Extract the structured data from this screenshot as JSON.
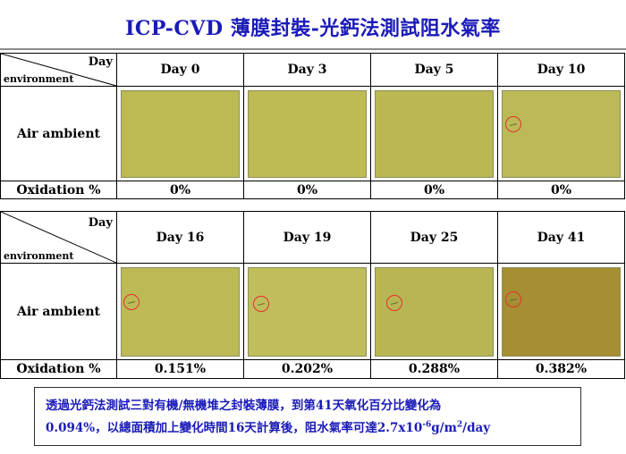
{
  "title": "ICP-CVD 薄膜封裝-光鈣法測試阻水氣率",
  "corner": {
    "day": "Day",
    "environment": "environment"
  },
  "row_labels": {
    "air": "Air ambient",
    "oxidation": "Oxidation %"
  },
  "table1": {
    "days": [
      "Day 0",
      "Day 3",
      "Day 5",
      "Day 10"
    ],
    "oxidation": [
      "0%",
      "0%",
      "0%",
      "0%"
    ]
  },
  "table2": {
    "days": [
      "Day 16",
      "Day 19",
      "Day 25",
      "Day 41"
    ],
    "oxidation": [
      "0.151%",
      "0.202%",
      "0.288%",
      "0.382%"
    ]
  },
  "colors": {
    "title": "#1a1ab8",
    "sample_fresh": "#bcba53",
    "sample_day41": "#a58f32",
    "marker": "#e53030"
  },
  "note": {
    "line1": "透過光鈣法測試三對有機/無機堆之封裝薄膜，到第41天氧化百分比變化為",
    "line2_a": "0.094%，以總面積加上變化時間16天計算後，阻水氣率可達2.7x10",
    "line2_exp1": "-6",
    "line2_b": "g/m",
    "line2_exp2": "2",
    "line2_c": "/day"
  }
}
